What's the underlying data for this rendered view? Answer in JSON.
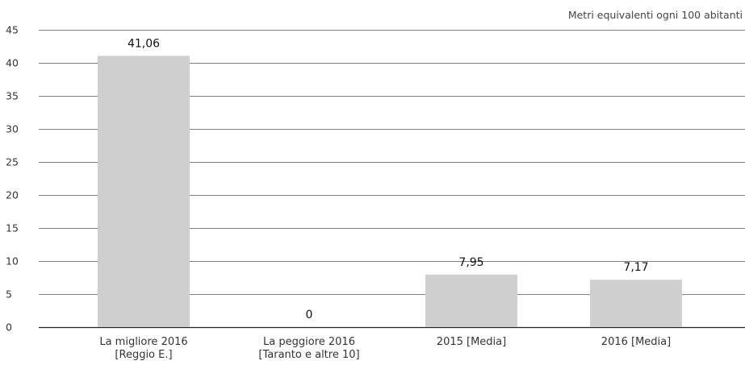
{
  "chart_data": {
    "type": "bar",
    "unit_note": "Metri equivalenti ogni 100 abitanti",
    "categories": [
      [
        "La migliore 2016",
        "[Reggio E.]"
      ],
      [
        "La peggiore 2016",
        "[Taranto e altre 10]"
      ],
      [
        "2015 [Media]"
      ],
      [
        "2016 [Media]"
      ]
    ],
    "values": [
      41.06,
      0,
      7.95,
      7.17
    ],
    "value_labels": [
      "41,06",
      "0",
      "7,95",
      "7,17"
    ],
    "ylim": [
      0,
      45
    ],
    "yticks": [
      0,
      5,
      10,
      15,
      20,
      25,
      30,
      35,
      40,
      45
    ],
    "grid": true,
    "bar_color": "#cfcfcf",
    "grid_color": "#555555"
  }
}
